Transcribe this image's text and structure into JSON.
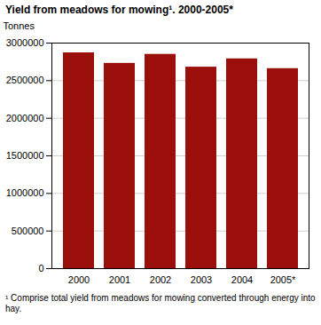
{
  "chart_data": {
    "type": "bar",
    "title": "Yield from meadows for mowing¹. 2000-2005*",
    "y_label": "Tonnes",
    "note": "¹ Comprise total yield from meadows for mowing converted through energy into hay.",
    "categories": [
      "2000",
      "2001",
      "2002",
      "2003",
      "2004",
      "2005*"
    ],
    "values": [
      2870000,
      2730000,
      2850000,
      2680000,
      2790000,
      2660000
    ],
    "color": "#9b0f0a",
    "ylim": [
      0,
      3000000
    ],
    "yticks": [
      0,
      500000,
      1000000,
      1500000,
      2000000,
      2500000,
      3000000
    ],
    "grid": true
  }
}
